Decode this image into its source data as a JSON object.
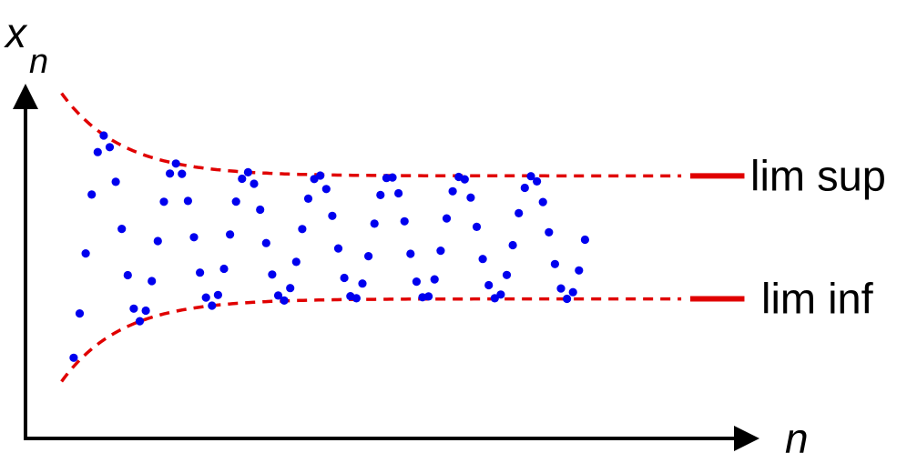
{
  "chart_data": {
    "type": "scatter",
    "title": "",
    "xlabel": "n",
    "ylabel_base": "x",
    "ylabel_sub": "n",
    "limits": {
      "sup": {
        "label": "lim sup",
        "value": 1.0
      },
      "inf": {
        "label": "lim inf",
        "value": -1.0
      }
    },
    "envelope": {
      "amplitude": 1.1,
      "decay": 0.1
    },
    "sequence": {
      "count": 86,
      "x_start": 1,
      "x_end": 86,
      "period": 11.83,
      "phase": -1.2,
      "center_y": 0.18,
      "note": ""
    },
    "xlim": [
      -7,
      115
    ],
    "ylim": [
      -3.3,
      2.5
    ],
    "grid": false,
    "legend": "none",
    "colors": {
      "sequence": "#0000ee",
      "envelope": "#e00000",
      "axes": "#000000"
    }
  }
}
